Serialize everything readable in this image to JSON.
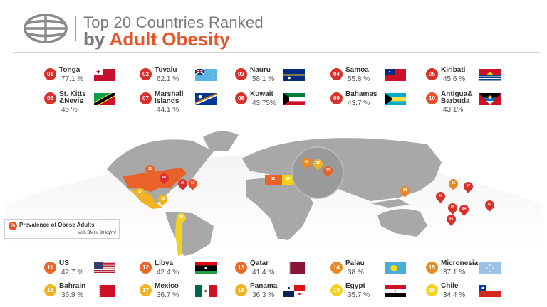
{
  "header": {
    "title_line1": "Top 20 Countries Ranked",
    "title_line2_prefix": "by ",
    "title_line2_accent": "Adult Obesity",
    "icon": "globe-icon"
  },
  "legend": {
    "badge": "%",
    "title": "Prevalence of Obese Adults",
    "subtitle": "with BMI ≥ 30 kg/m²"
  },
  "colors": {
    "rank_1_10": "#d9302b",
    "rank_10": "#e8532a",
    "rank_11_13": "#e8692a",
    "rank_14_15": "#eb8a22",
    "rank_16_18": "#f0b323",
    "rank_19_20": "#f2d21c",
    "accent": "#e8532a",
    "land": "#a8a8a8"
  },
  "countries": [
    {
      "rank": "01",
      "name": "Tonga",
      "value": "77.1 %"
    },
    {
      "rank": "02",
      "name": "Tuvalu",
      "value": "62.1 %"
    },
    {
      "rank": "03",
      "name": "Nauru",
      "value": "58.1 %"
    },
    {
      "rank": "04",
      "name": "Samoa",
      "value": "55.8 %"
    },
    {
      "rank": "05",
      "name": "Kiribati",
      "value": "45.6 %"
    },
    {
      "rank": "06",
      "name": "St. Kitts\n&Nevis",
      "value": "45 %"
    },
    {
      "rank": "07",
      "name": "Marshall\nIslands",
      "value": "44.1 %"
    },
    {
      "rank": "08",
      "name": "Kuwait",
      "value": "43.75%"
    },
    {
      "rank": "09",
      "name": "Bahamas",
      "value": "43.7 %"
    },
    {
      "rank": "10",
      "name": "Antigua&\nBarbuda",
      "value": "43.1%"
    },
    {
      "rank": "11",
      "name": "US",
      "value": "42.7 %"
    },
    {
      "rank": "12",
      "name": "Libya",
      "value": "42.4 %"
    },
    {
      "rank": "13",
      "name": "Qatar",
      "value": "41.4 %"
    },
    {
      "rank": "14",
      "name": "Palau",
      "value": "38 %"
    },
    {
      "rank": "15",
      "name": "Micronesia",
      "value": "37.1 %"
    },
    {
      "rank": "16",
      "name": "Bahrain",
      "value": "36.9 %"
    },
    {
      "rank": "17",
      "name": "Mexico",
      "value": "36.7 %"
    },
    {
      "rank": "18",
      "name": "Panama",
      "value": "36.3 %"
    },
    {
      "rank": "19",
      "name": "Egypt",
      "value": "35.7 %"
    },
    {
      "rank": "20",
      "name": "Chile",
      "value": "34.4 %"
    }
  ],
  "chart_data": {
    "type": "table",
    "title": "Top 20 Countries Ranked by Adult Obesity",
    "subtitle": "Prevalence of Obese Adults with BMI ≥ 30 kg/m²",
    "categories": [
      "Tonga",
      "Tuvalu",
      "Nauru",
      "Samoa",
      "Kiribati",
      "St. Kitts & Nevis",
      "Marshall Islands",
      "Kuwait",
      "Bahamas",
      "Antigua & Barbuda",
      "US",
      "Libya",
      "Qatar",
      "Palau",
      "Micronesia",
      "Bahrain",
      "Mexico",
      "Panama",
      "Egypt",
      "Chile"
    ],
    "values": [
      77.1,
      62.1,
      58.1,
      55.8,
      45.6,
      45,
      44.1,
      43.75,
      43.7,
      43.1,
      42.7,
      42.4,
      41.4,
      38,
      37.1,
      36.9,
      36.7,
      36.3,
      35.7,
      34.4
    ],
    "unit": "%",
    "legend_position": "bottom-left of map"
  }
}
